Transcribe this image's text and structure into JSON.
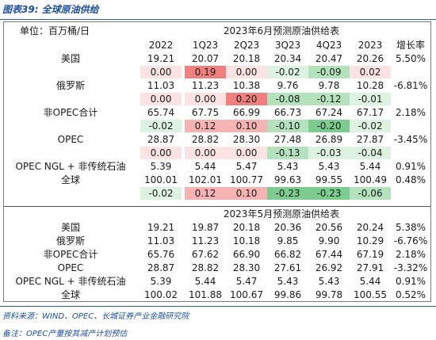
{
  "title": "图表39:  全球原油供给",
  "header": {
    "unit": "单位：百万桶/日",
    "section1": "2023年6月预测原油供给表",
    "section2": "2023年5月预测原油供给表"
  },
  "columns": [
    "2022",
    "1Q23",
    "2Q23",
    "3Q23",
    "4Q23",
    "2023",
    "增长率"
  ],
  "section1": {
    "rows": [
      {
        "label": "美国",
        "values": [
          "19.21",
          "20.07",
          "20.18",
          "20.34",
          "20.47",
          "20.26",
          "5.50%"
        ],
        "changes": [
          "0.00",
          "0.19",
          "0.00",
          "-0.02",
          "-0.09",
          "0.02"
        ]
      },
      {
        "label": "俄罗斯",
        "values": [
          "11.03",
          "11.23",
          "10.38",
          "9.76",
          "9.78",
          "10.28",
          "-6.81%"
        ],
        "changes": [
          "0.00",
          "0.00",
          "0.20",
          "-0.08",
          "-0.12",
          "-0.01"
        ]
      },
      {
        "label": "非OPEC合计",
        "values": [
          "65.74",
          "67.75",
          "66.99",
          "66.73",
          "67.24",
          "67.17",
          "2.18%"
        ],
        "changes": [
          "-0.02",
          "0.12",
          "0.10",
          "-0.10",
          "-0.20",
          "-0.02"
        ]
      },
      {
        "label": "OPEC",
        "values": [
          "28.87",
          "28.82",
          "28.30",
          "27.48",
          "26.89",
          "27.87",
          "-3.45%"
        ],
        "changes": [
          "0.00",
          "0.00",
          "0.00",
          "-0.13",
          "-0.03",
          "-0.04"
        ]
      },
      {
        "label": "OPEC NGL + 非传统石油",
        "values": [
          "5.39",
          "5.44",
          "5.47",
          "5.43",
          "5.43",
          "5.44",
          "0.91%"
        ]
      },
      {
        "label": "全球",
        "values": [
          "100.01",
          "102.01",
          "100.77",
          "99.63",
          "99.55",
          "100.49",
          "0.48%"
        ],
        "changes": [
          "-0.02",
          "0.12",
          "0.10",
          "-0.23",
          "-0.23",
          "-0.06"
        ]
      }
    ]
  },
  "section2": {
    "rows": [
      {
        "label": "美国",
        "values": [
          "19.21",
          "19.87",
          "20.18",
          "20.36",
          "20.56",
          "20.24",
          "5.38%"
        ]
      },
      {
        "label": "俄罗斯",
        "values": [
          "11.03",
          "11.23",
          "10.18",
          "9.85",
          "9.90",
          "10.29",
          "-6.76%"
        ]
      },
      {
        "label": "非OPEC合计",
        "values": [
          "65.76",
          "67.62",
          "66.90",
          "66.82",
          "67.44",
          "67.19",
          "2.18%"
        ]
      },
      {
        "label": "OPEC",
        "values": [
          "28.87",
          "28.82",
          "28.30",
          "27.61",
          "26.92",
          "27.91",
          "-3.32%"
        ]
      },
      {
        "label": "OPEC NGL + 非传统石油",
        "values": [
          "5.39",
          "5.44",
          "5.47",
          "5.43",
          "5.43",
          "5.44",
          "0.91%"
        ]
      },
      {
        "label": "全球",
        "values": [
          "100.02",
          "101.88",
          "100.67",
          "99.86",
          "99.78",
          "100.55",
          "0.52%"
        ]
      }
    ]
  },
  "source": "资料来源：WIND、OPEC、长城证券产业金融研究院",
  "footnote": "备注：OPEC产量按其减产计划预估",
  "colors": {
    "red_strong": "#f08080",
    "red_mid": "#f6b3b3",
    "red_light": "#fbe3e3",
    "green_strong": "#7dcc8f",
    "green_mid": "#b4e2bd",
    "green_light": "#def2e2",
    "accent": "#1f4e9c"
  }
}
